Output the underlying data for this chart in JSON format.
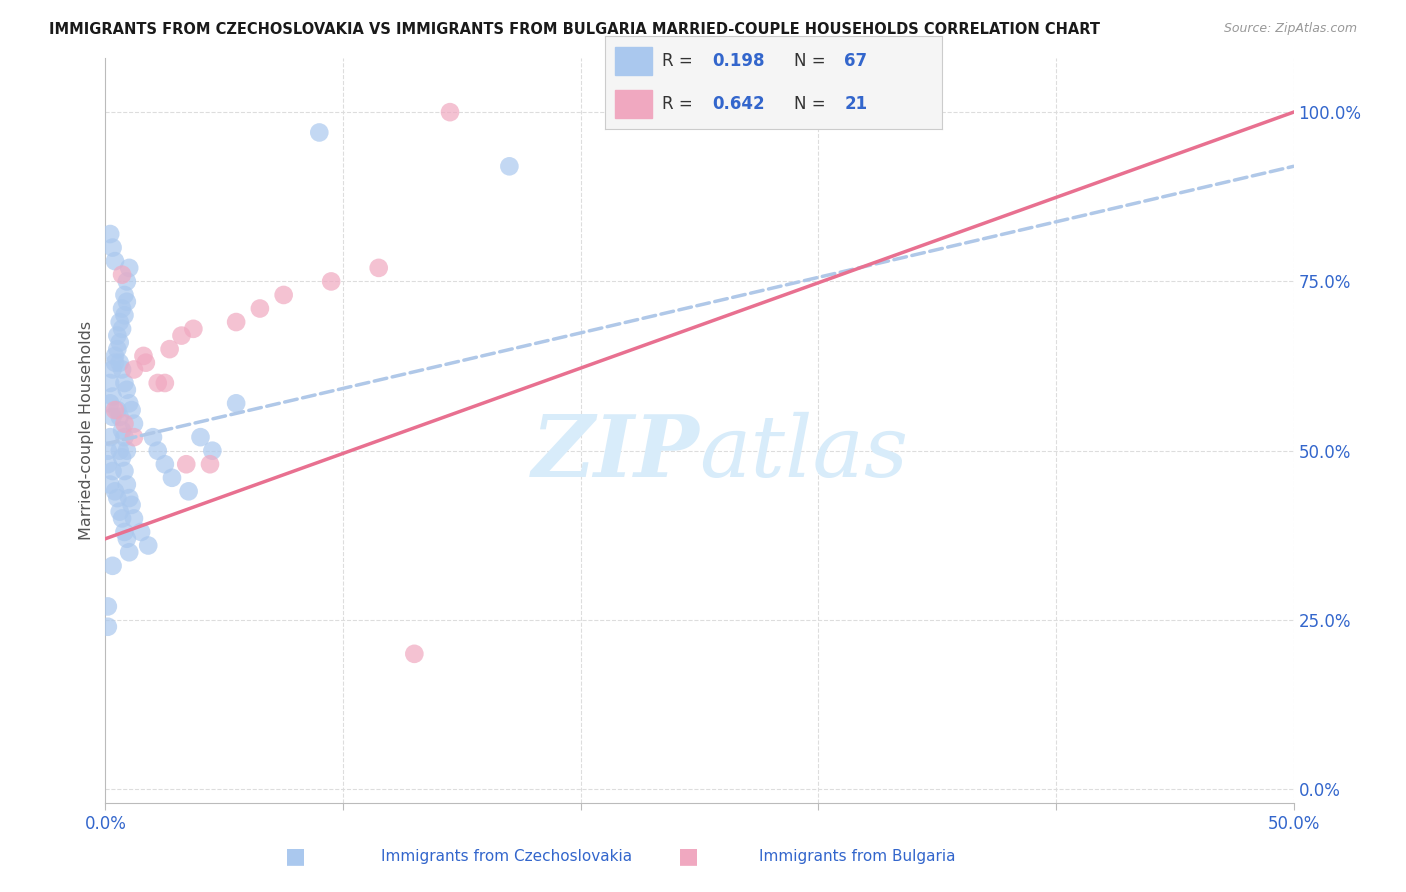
{
  "title": "IMMIGRANTS FROM CZECHOSLOVAKIA VS IMMIGRANTS FROM BULGARIA MARRIED-COUPLE HOUSEHOLDS CORRELATION CHART",
  "source": "Source: ZipAtlas.com",
  "ylabel": "Married-couple Households",
  "xlim": [
    0.0,
    0.5
  ],
  "ylim": [
    -0.02,
    1.08
  ],
  "right_yticks": [
    0.0,
    0.25,
    0.5,
    0.75,
    1.0
  ],
  "right_yticklabels": [
    "0.0%",
    "25.0%",
    "50.0%",
    "75.0%",
    "100.0%"
  ],
  "blue_scatter_color": "#aac8ee",
  "pink_scatter_color": "#f0a8c0",
  "blue_line_color": "#b0c8e8",
  "pink_line_color": "#e87090",
  "grid_color": "#dddddd",
  "watermark_color": "#d8ecfa",
  "bg_color": "#ffffff",
  "title_color": "#1a1a1a",
  "source_color": "#999999",
  "R_blue": "0.198",
  "N_blue": "67",
  "R_pink": "0.642",
  "N_pink": "21",
  "bottom_label_1": "Immigrants from Czechoslovakia",
  "bottom_label_2": "Immigrants from Bulgaria",
  "czech_x": [
    0.003,
    0.005,
    0.002,
    0.004,
    0.007,
    0.006,
    0.008,
    0.009,
    0.003,
    0.002,
    0.004,
    0.005,
    0.006,
    0.007,
    0.008,
    0.009,
    0.01,
    0.003,
    0.002,
    0.001,
    0.001,
    0.006,
    0.007,
    0.008,
    0.009,
    0.01,
    0.011,
    0.012,
    0.004,
    0.003,
    0.002,
    0.005,
    0.006,
    0.007,
    0.008,
    0.009,
    0.003,
    0.002,
    0.004,
    0.005,
    0.006,
    0.007,
    0.008,
    0.009,
    0.01,
    0.003,
    0.001,
    0.001,
    0.006,
    0.007,
    0.008,
    0.009,
    0.01,
    0.011,
    0.012,
    0.015,
    0.018,
    0.02,
    0.022,
    0.025,
    0.028,
    0.035,
    0.04,
    0.045,
    0.055,
    0.09,
    0.17
  ],
  "czech_y": [
    0.62,
    0.65,
    0.6,
    0.63,
    0.68,
    0.66,
    0.7,
    0.72,
    0.58,
    0.57,
    0.64,
    0.67,
    0.69,
    0.71,
    0.73,
    0.75,
    0.77,
    0.55,
    0.52,
    0.5,
    0.48,
    0.63,
    0.62,
    0.6,
    0.59,
    0.57,
    0.56,
    0.54,
    0.78,
    0.8,
    0.82,
    0.56,
    0.55,
    0.53,
    0.52,
    0.5,
    0.47,
    0.45,
    0.44,
    0.43,
    0.41,
    0.4,
    0.38,
    0.37,
    0.35,
    0.33,
    0.27,
    0.24,
    0.5,
    0.49,
    0.47,
    0.45,
    0.43,
    0.42,
    0.4,
    0.38,
    0.36,
    0.52,
    0.5,
    0.48,
    0.46,
    0.44,
    0.52,
    0.5,
    0.57,
    0.97,
    0.92
  ],
  "bulg_x": [
    0.004,
    0.008,
    0.012,
    0.017,
    0.022,
    0.027,
    0.032,
    0.037,
    0.012,
    0.055,
    0.065,
    0.075,
    0.095,
    0.115,
    0.007,
    0.016,
    0.025,
    0.034,
    0.044,
    0.145,
    0.13
  ],
  "bulg_y": [
    0.56,
    0.54,
    0.62,
    0.63,
    0.6,
    0.65,
    0.67,
    0.68,
    0.52,
    0.69,
    0.71,
    0.73,
    0.75,
    0.77,
    0.76,
    0.64,
    0.6,
    0.48,
    0.48,
    1.0,
    0.2
  ],
  "blue_trend_x": [
    0.0,
    0.5
  ],
  "blue_trend_y_intercept": 0.51,
  "blue_trend_slope": 0.82,
  "pink_trend_y_intercept": 0.37,
  "pink_trend_slope": 1.26
}
